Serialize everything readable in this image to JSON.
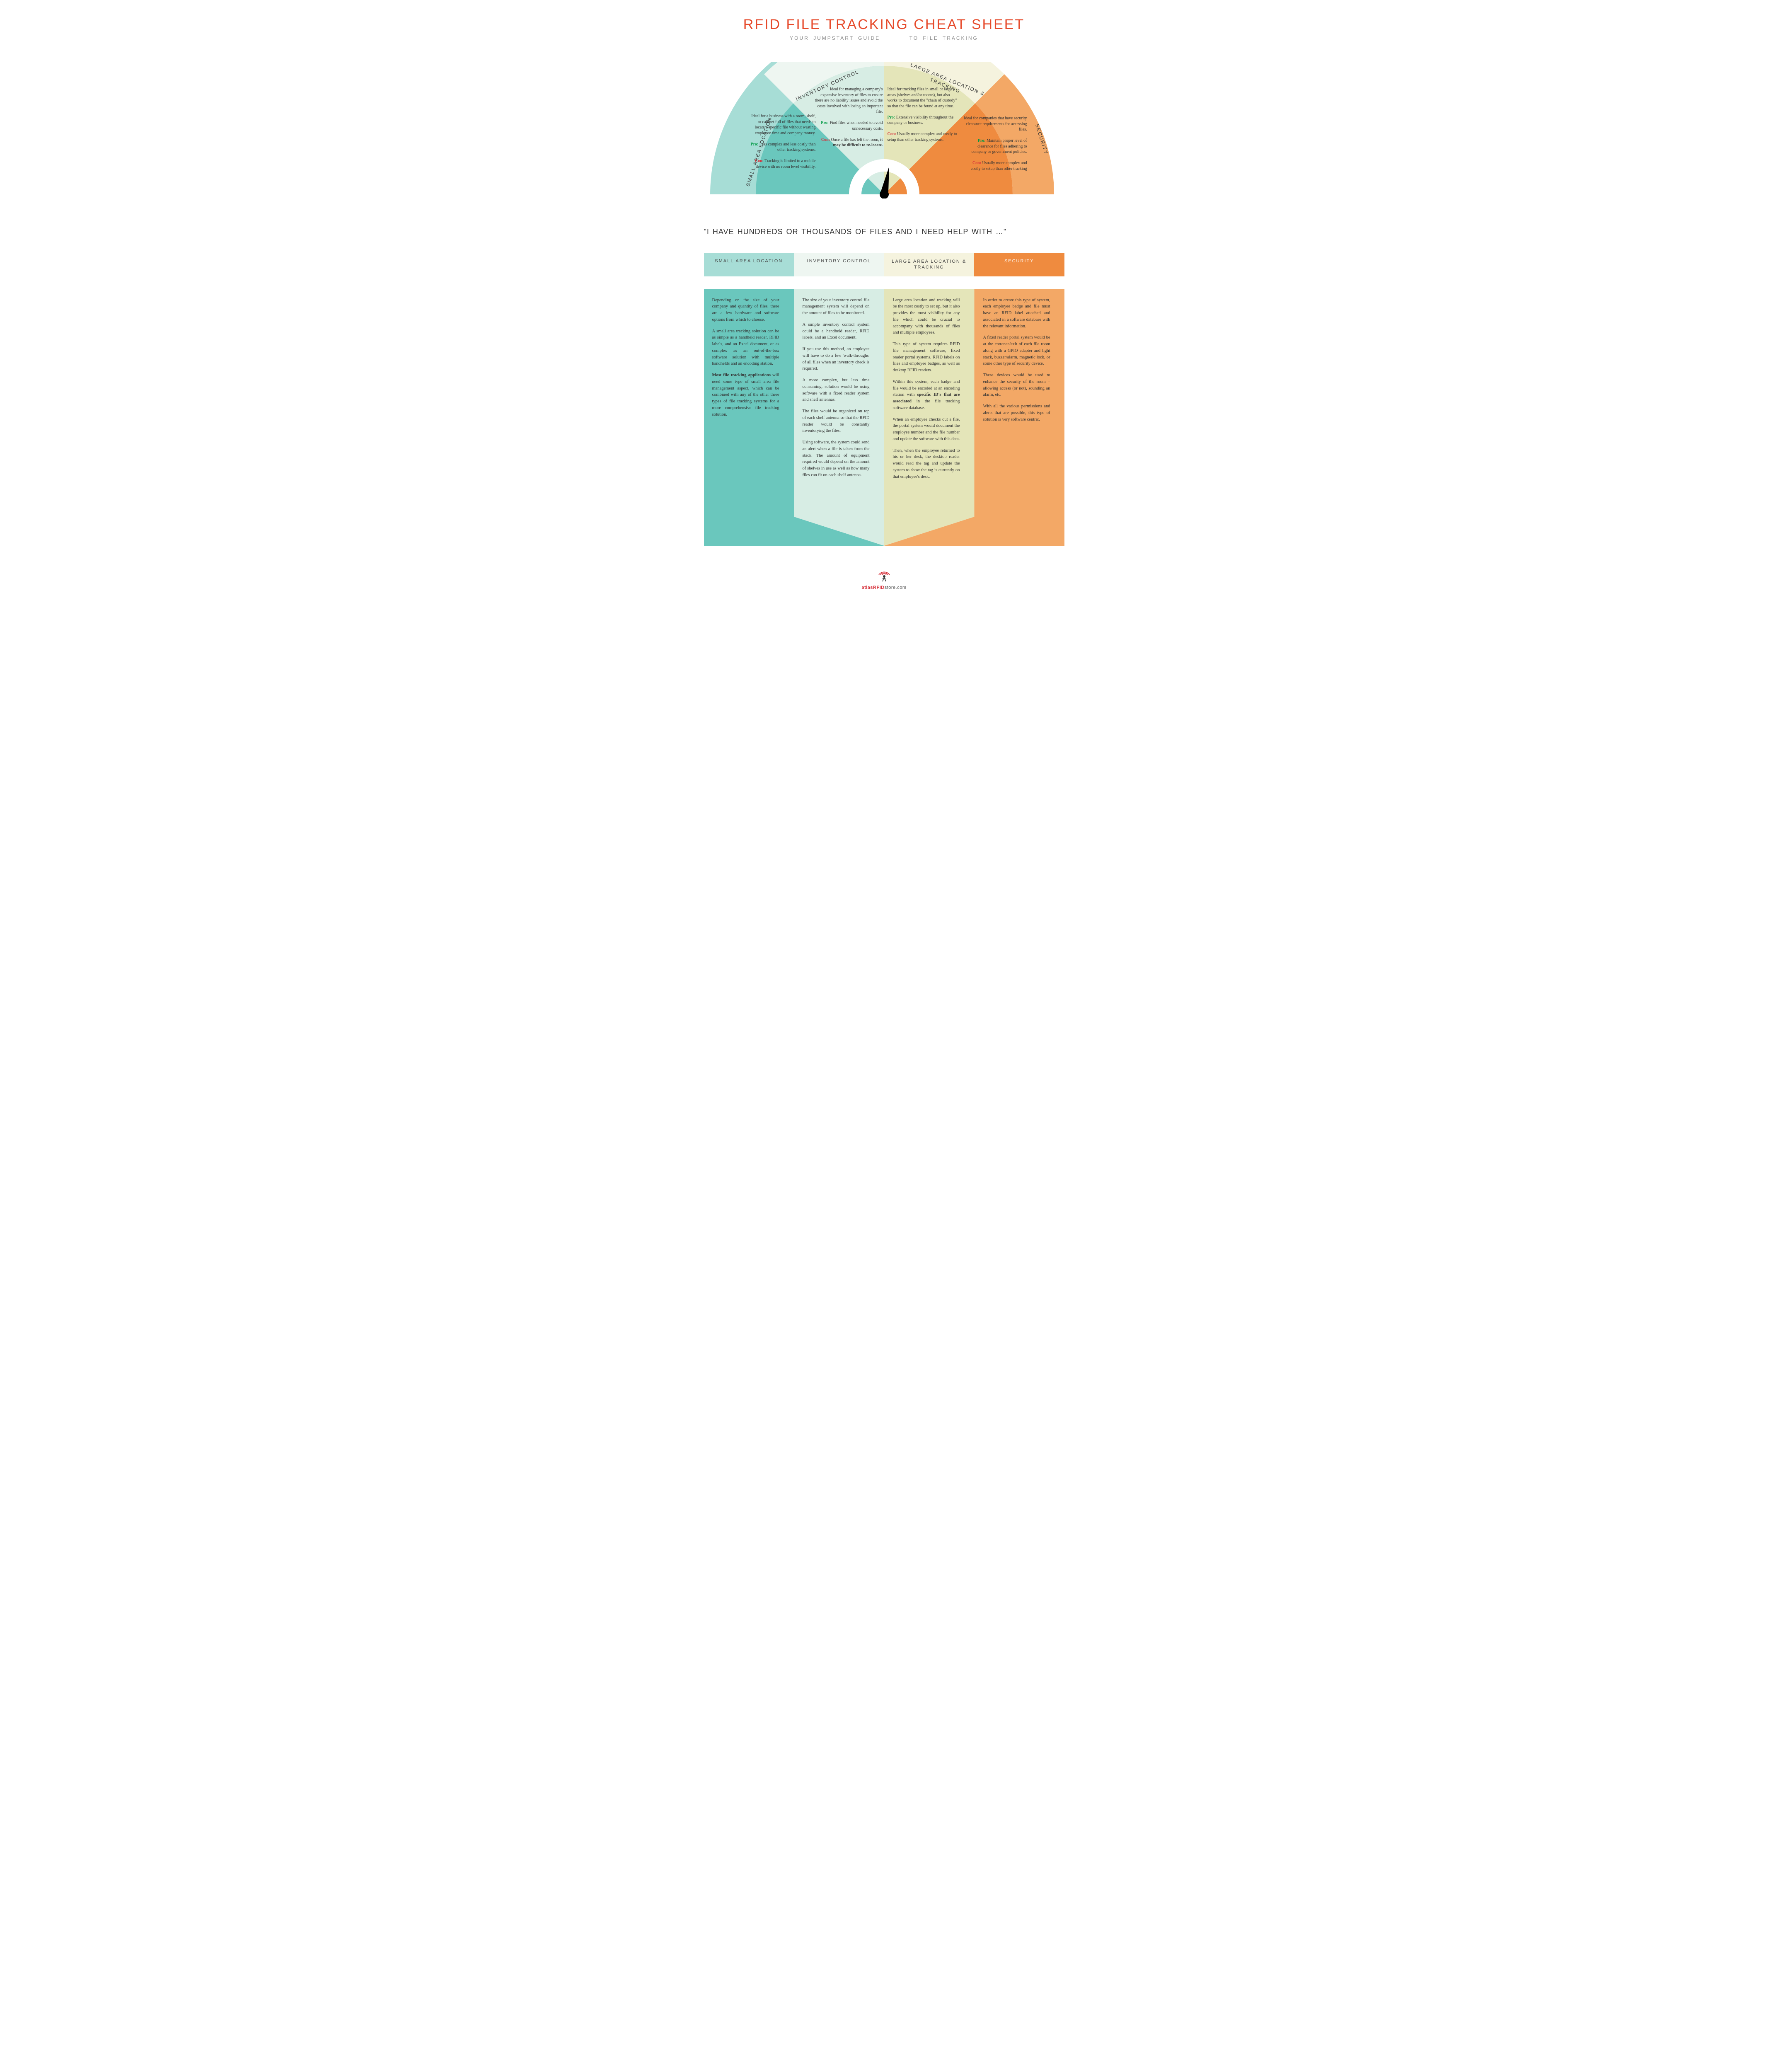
{
  "title": "RFID FILE TRACKING CHEAT SHEET",
  "subtitle_left": "YOUR  JUMPSTART GUIDE",
  "subtitle_right": "TO FILE TRACKING",
  "colors": {
    "small_area": "#6ac7bd",
    "small_area_light": "#a7ddd6",
    "inventory": "#d7ede4",
    "inventory_light": "#eef6f1",
    "large_area": "#e4e5b9",
    "large_area_light": "#f5f3de",
    "security": "#ef8b3f",
    "security_light": "#f3a866",
    "accent_red": "#e64a2b",
    "pro": "#009944",
    "con": "#d6303a",
    "needle": "#000000"
  },
  "segments": [
    {
      "key": "small_area",
      "label": "SMALL  AREA  LOCATION",
      "ideal": "Ideal for a business with a room, shelf, or cabinet full of files that needs to locate a specific file without wasting employee time and company money.",
      "pro": "Less complex and less costly than other tracking systems.",
      "con": "Tracking is limited to a mobile device with no room level visibility."
    },
    {
      "key": "inventory",
      "label": "INVENTORY  CONTROL",
      "ideal": "Ideal for managing a company's expansive inventory of files to ensure there are no liability issues and avoid the costs involved with losing an important file.",
      "pro": "Find files when needed to avoid unnecessary costs.",
      "con_pre": "Once a file has left the room,",
      "con_bold": "it may be difficult to re-locate."
    },
    {
      "key": "large_area",
      "label": "LARGE  AREA LOCATION  &  TRACKING",
      "ideal": "Ideal for tracking files in small or large areas (shelves and/or rooms), but also works to document the \"chain of custody\" so that the file can be found at any time.",
      "pro": "Extensive visibility throughout the company or business.",
      "con": "Usually more complex and costly to setup than other tracking systems."
    },
    {
      "key": "security",
      "label": "SECURITY",
      "ideal": "Ideal for companies that have security clearance requirements for accessing files.",
      "pro": "Maintain proper level of clearance for files adhering to company or government policies.",
      "con": "Usually more complex and costly to setup than other tracking"
    }
  ],
  "section2": {
    "quote": "\"I HAVE HUNDREDS OR THOUSANDS OF FILES AND I NEED HELP WITH  …\"",
    "headers": [
      "SMALL  AREA  LOCATION",
      "INVENTORY  CONTROL",
      "LARGE  AREA LOCATION  &  TRACKING",
      "SECURITY"
    ],
    "header_bg": [
      "#a7ddd6",
      "#eef6f1",
      "#f5f3de",
      "#ef8b3f"
    ],
    "body_bg": [
      "#6ac7bd",
      "#d7ede4",
      "#e4e5b9",
      "#f3a866"
    ],
    "bodies": [
      "<p>Depending on the size of your company and quantity of files, there are a few hardware and software options from which to choose.</p><p>A small area tracking solution can be as simple as a handheld reader, RFID labels, and an Excel document, or as complex as an out-of-the-box software solution with multiple handhelds and an encoding station.</p><p><b>Most file tracking applications</b> will need some type of small area file management aspect, which can be combined with any of the other three types of file tracking systems for a more comprehensive file tracking solution.</p>",
      "<p>The size of your inventory control file management system will depend on the amount of files to be monitored.</p><p>A simple inventory control system could be a handheld reader, RFID labels, and an Excel document.</p><p>If you use this method, an employee will have to do a few 'walk-throughs' of all files when an inventory check is required.</p><p>A more complex, but less time consuming, solution would be using software with a fixed reader system and shelf antennas.</p><p>The files would be organized on top of each shelf antenna so that the RFID reader would be constantly inventorying the files.</p><p>Using software, the system could send an alert when a file is taken from the stack. The amount of equipment required would depend on the amount of shelves in use as well as how many files can fit on each shelf antenna.</p>",
      "<p>Large area location and tracking will be the most costly to set up, but it also provides the most visibility for any file which could be crucial to accompany with thousands of files and multiple employees.</p><p>This type of system requires RFID file management software, fixed reader portal systems, RFID labels on files and employee badges, as well as desktop RFID readers.</p><p>Within this system, each badge and file would be encoded at an encoding station with <b>specific ID's that are associated</b> in the file tracking software database.</p><p>When an employee checks out a file, the portal system would document the employee number and the file number and update the software with this data.</p><p>Then, when the employee returned to his or her desk, the desktop reader would read the tag and update the system to show the tag is currently on that employee's desk.</p>",
      "<p>In order to create this type of system, each employee badge and file must have an RFID label attached and associated in a software database with the relevant information.</p><p>A fixed reader portal system would be at the entrance/exit of each file room along with a GPIO adapter and light stack, buzzer/alarm, magnetic lock, or some other type of security device.</p><p>These devices would be used to enhance the security of the room – allowing access (or not), sounding an alarm, etc.</p><p>With all the various permissions and alerts that are possible, this type of solution is very software centric.</p>"
    ]
  },
  "footer": {
    "brand": "atlasRFID",
    "suffix": "store.com"
  }
}
